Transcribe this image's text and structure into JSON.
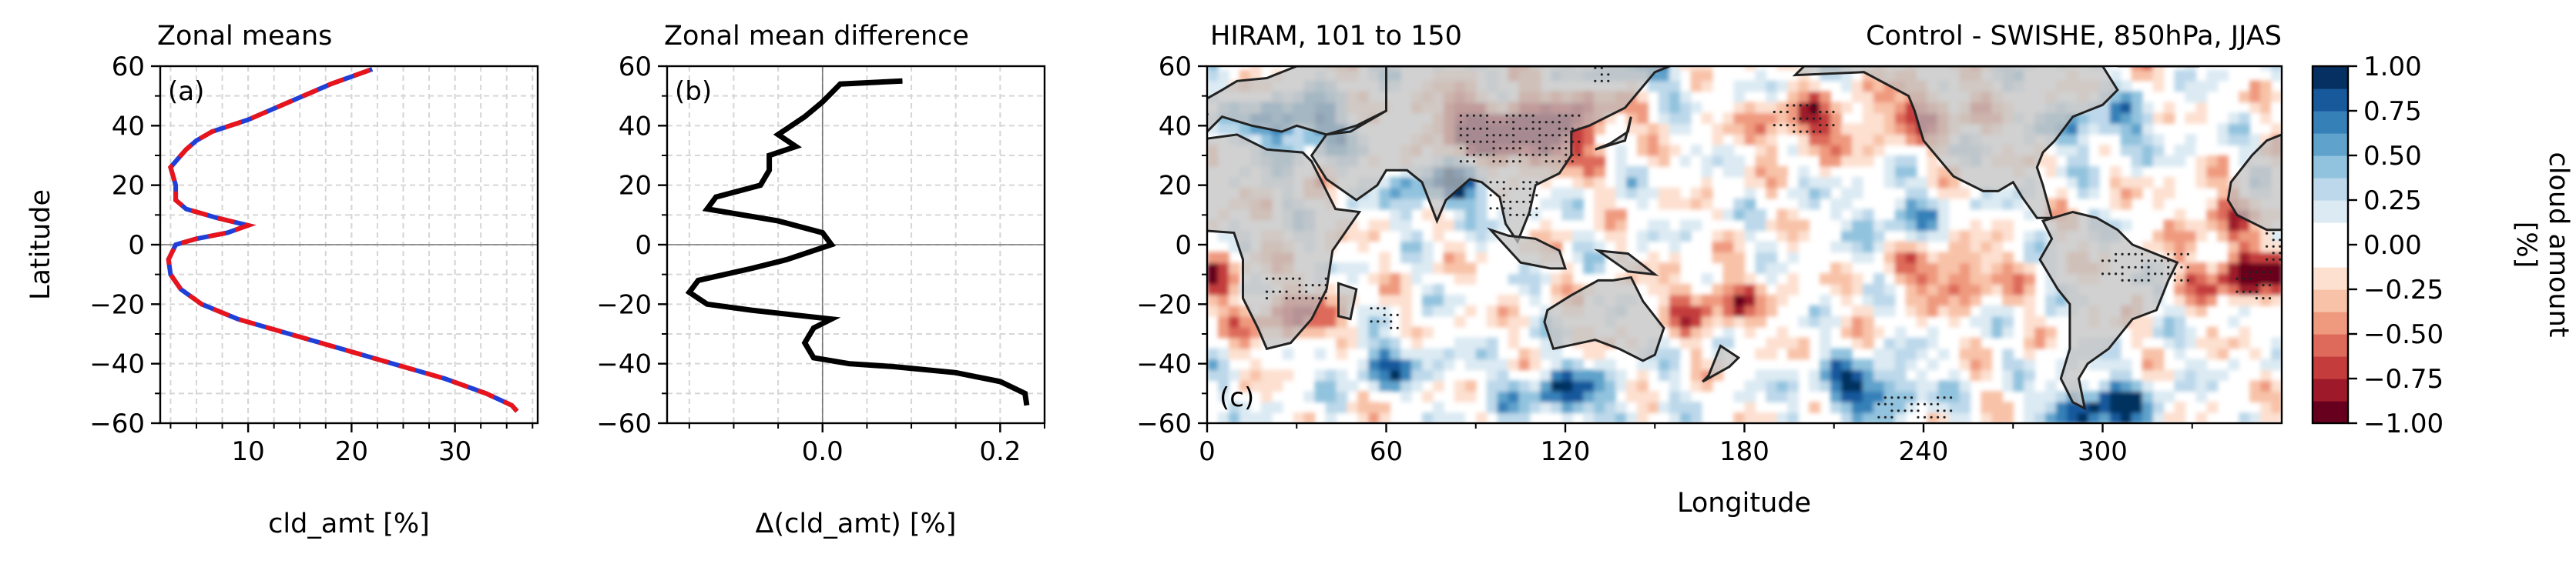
{
  "figure": {
    "panel_a": {
      "title": "Zonal means",
      "panel_label": "(a)",
      "xlabel": "cld_amt [%]",
      "ylabel": "Latitude",
      "xticks": [
        "10",
        "20",
        "30"
      ],
      "yticks": [
        "60",
        "40",
        "20",
        "0",
        "−20",
        "−40",
        "−60"
      ]
    },
    "panel_b": {
      "title": "Zonal mean difference",
      "panel_label": "(b)",
      "xlabel": "Δ(cld_amt) [%]",
      "xticks": [
        "0.0",
        "0.2"
      ],
      "yticks": [
        "60",
        "40",
        "20",
        "0",
        "−20",
        "−40",
        "−60"
      ]
    },
    "panel_c": {
      "title_left": "HIRAM, 101 to 150",
      "title_right": "Control - SWISHE, 850hPa, JJAS",
      "panel_label": "(c)",
      "xlabel": "Longitude",
      "xticks": [
        "0",
        "60",
        "120",
        "180",
        "240",
        "300"
      ],
      "yticks": [
        "60",
        "40",
        "20",
        "0",
        "−20",
        "−40",
        "−60"
      ]
    },
    "colorbar": {
      "label": "cloud amount\n[%]",
      "ticks": [
        "1.00",
        "0.75",
        "0.50",
        "0.25",
        "0.00",
        "−0.25",
        "−0.50",
        "−0.75",
        "−1.00"
      ]
    },
    "colors": {
      "control_line": "#1f3fd6",
      "swishe_line": "#e8141c",
      "diff_line": "#000000",
      "land": "#bfbfbf",
      "cmap": [
        "#67001f",
        "#9e1a2a",
        "#c43c3c",
        "#dd6a5a",
        "#ef9a7f",
        "#f8c2a8",
        "#fde0d0",
        "#ffffff",
        "#ffffff",
        "#dbeaf3",
        "#bcd8ea",
        "#92c3de",
        "#5fa2cb",
        "#3680b8",
        "#18599c",
        "#053061"
      ]
    }
  },
  "chart_data": [
    {
      "type": "line",
      "title": "Zonal means",
      "xlabel": "cld_amt [%]",
      "ylabel": "Latitude",
      "xlim": [
        1.5,
        38
      ],
      "ylim": [
        -60,
        60
      ],
      "grid": true,
      "series": [
        {
          "style": "solid",
          "x": [
            36,
            35.5,
            33,
            29,
            24,
            19,
            14,
            9,
            5.5,
            3.5,
            2.5,
            2.3,
            3,
            5,
            8,
            10,
            7,
            4,
            3,
            3,
            2.5,
            3.5,
            4,
            5,
            6.5,
            10,
            14,
            18,
            22
          ],
          "y": [
            -56,
            -54,
            -50,
            -45,
            -40,
            -35,
            -30,
            -25,
            -20,
            -15,
            -10,
            -5,
            0,
            2,
            4,
            6.5,
            9,
            12,
            15,
            20,
            26,
            30,
            32,
            35,
            38,
            42,
            48,
            54,
            59
          ]
        },
        {
          "style": "dashed",
          "x": [
            36,
            35.5,
            33,
            29,
            24,
            19,
            14,
            9,
            5.5,
            3.5,
            2.5,
            2.3,
            3,
            5,
            8,
            10,
            7,
            4,
            3,
            3,
            2.5,
            3.5,
            4,
            5,
            6.5,
            10,
            14,
            18,
            22
          ],
          "y": [
            -56,
            -54,
            -50,
            -45,
            -40,
            -35,
            -30,
            -25,
            -20,
            -15,
            -10,
            -5,
            0,
            2,
            4,
            6.5,
            9,
            12,
            15,
            20,
            26,
            30,
            32,
            35,
            38,
            42,
            48,
            54,
            59
          ]
        }
      ]
    },
    {
      "type": "line",
      "title": "Zonal mean difference",
      "xlabel": "Δ(cld_amt) [%]",
      "xlim": [
        -0.175,
        0.25
      ],
      "ylim": [
        -60,
        60
      ],
      "grid": true,
      "series": [
        {
          "x": [
            0.23,
            0.228,
            0.2,
            0.15,
            0.08,
            0.03,
            -0.01,
            -0.02,
            -0.01,
            0.01,
            -0.02,
            -0.08,
            -0.13,
            -0.15,
            -0.14,
            -0.08,
            -0.04,
            -0.01,
            0.01,
            0.0,
            -0.05,
            -0.13,
            -0.12,
            -0.07,
            -0.06,
            -0.06,
            -0.03,
            -0.05,
            -0.02,
            0.0,
            0.02,
            0.09
          ],
          "y": [
            -54,
            -50,
            -46,
            -43,
            -41,
            -40,
            -38,
            -33,
            -28,
            -25,
            -24,
            -22,
            -20,
            -16,
            -12,
            -8,
            -5,
            -2,
            0,
            4,
            8,
            12,
            16,
            20,
            25,
            30,
            33,
            37,
            43,
            48,
            54,
            55
          ]
        }
      ]
    },
    {
      "type": "heatmap",
      "title": "HIRAM, 101 to 150 — Control - SWISHE, 850hPa, JJAS",
      "xlabel": "Longitude",
      "xlim": [
        0,
        360
      ],
      "ylim": [
        -60,
        60
      ],
      "colorbar_label": "cloud amount\n[%]",
      "colorbar_range": [
        -1.0,
        1.0
      ],
      "colorbar_levels": 16,
      "anomaly_centers": [
        {
          "lon": 110,
          "lat": 35,
          "value": -1.0
        },
        {
          "lon": 90,
          "lat": 40,
          "value": -0.9
        },
        {
          "lon": 130,
          "lat": 48,
          "value": -0.7
        },
        {
          "lon": 30,
          "lat": 40,
          "value": 0.8
        },
        {
          "lon": 80,
          "lat": 20,
          "value": 0.7
        },
        {
          "lon": 140,
          "lat": 55,
          "value": 0.6
        },
        {
          "lon": 200,
          "lat": 40,
          "value": -0.6
        },
        {
          "lon": 240,
          "lat": 45,
          "value": -0.6
        },
        {
          "lon": 300,
          "lat": 40,
          "value": 0.5
        },
        {
          "lon": 350,
          "lat": -10,
          "value": -0.95
        },
        {
          "lon": 60,
          "lat": -40,
          "value": 0.5
        },
        {
          "lon": 300,
          "lat": -55,
          "value": 0.9
        },
        {
          "lon": 120,
          "lat": -50,
          "value": 0.7
        },
        {
          "lon": 220,
          "lat": -48,
          "value": 0.8
        },
        {
          "lon": 170,
          "lat": -20,
          "value": -0.6
        },
        {
          "lon": 250,
          "lat": -10,
          "value": -0.6
        },
        {
          "lon": 30,
          "lat": -25,
          "value": -0.6
        },
        {
          "lon": 230,
          "lat": 10,
          "value": 0.4
        },
        {
          "lon": 340,
          "lat": 10,
          "value": -0.4
        }
      ]
    }
  ]
}
